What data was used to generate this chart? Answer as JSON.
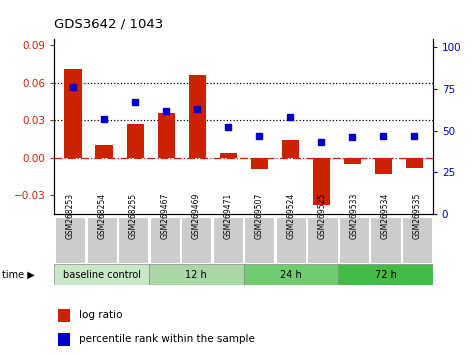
{
  "title": "GDS3642 / 1043",
  "samples": [
    "GSM268253",
    "GSM268254",
    "GSM268255",
    "GSM269467",
    "GSM269469",
    "GSM269471",
    "GSM269507",
    "GSM269524",
    "GSM269525",
    "GSM269533",
    "GSM269534",
    "GSM269535"
  ],
  "log_ratio": [
    0.071,
    0.01,
    0.027,
    0.036,
    0.066,
    0.004,
    -0.009,
    0.014,
    -0.038,
    -0.005,
    -0.013,
    -0.008
  ],
  "percentile_rank": [
    76,
    57,
    67,
    62,
    63,
    52,
    47,
    58,
    43,
    46,
    47,
    47
  ],
  "groups": [
    {
      "label": "baseline control",
      "start": 0,
      "end": 3
    },
    {
      "label": "12 h",
      "start": 3,
      "end": 6
    },
    {
      "label": "24 h",
      "start": 6,
      "end": 9
    },
    {
      "label": "72 h",
      "start": 9,
      "end": 12
    }
  ],
  "group_colors": [
    "#c8e8c8",
    "#a8d8a8",
    "#70cc70",
    "#44bb44"
  ],
  "ylim_left": [
    -0.045,
    0.095
  ],
  "ylim_right": [
    0,
    105
  ],
  "yticks_left": [
    -0.03,
    0,
    0.03,
    0.06,
    0.09
  ],
  "yticks_right": [
    0,
    25,
    50,
    75,
    100
  ],
  "bar_color": "#cc2200",
  "dot_color": "#0000cc",
  "hline_y": [
    0.03,
    0.06
  ],
  "zero_line_color": "#cc2200",
  "plot_bg": "#ffffff",
  "sample_box_color": "#cccccc",
  "time_label": "time ▶"
}
